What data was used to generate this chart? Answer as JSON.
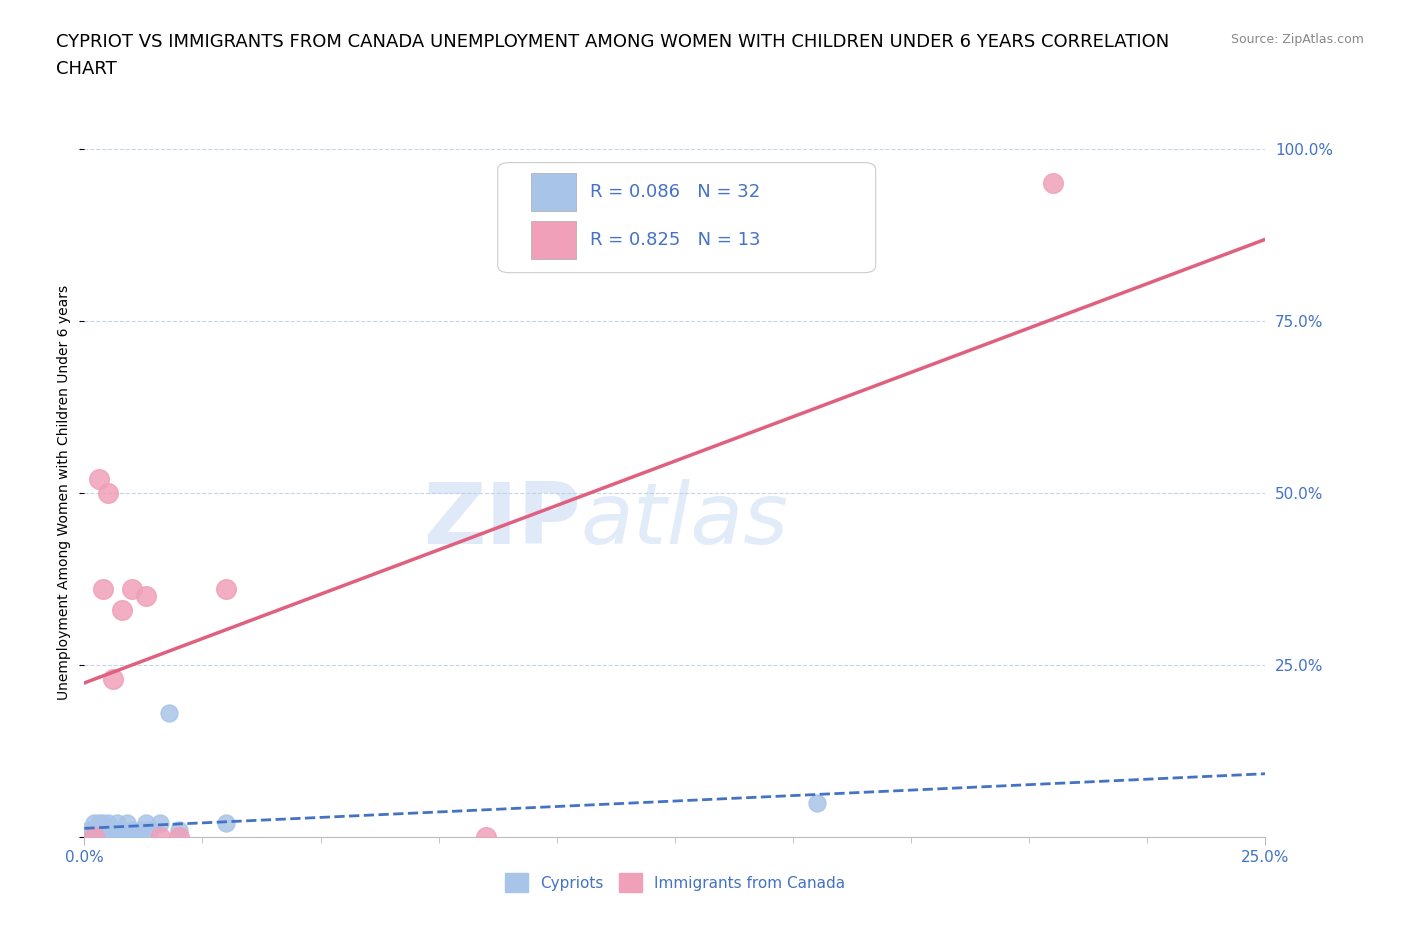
{
  "title_line1": "CYPRIOT VS IMMIGRANTS FROM CANADA UNEMPLOYMENT AMONG WOMEN WITH CHILDREN UNDER 6 YEARS CORRELATION",
  "title_line2": "CHART",
  "source": "Source: ZipAtlas.com",
  "ylabel": "Unemployment Among Women with Children Under 6 years",
  "watermark_zip": "ZIP",
  "watermark_atlas": "atlas",
  "xlim": [
    0.0,
    0.25
  ],
  "ylim": [
    0.0,
    1.0
  ],
  "xtick_labels_positions": [
    0.0,
    0.25
  ],
  "xtick_labels_text": [
    "0.0%",
    "25.0%"
  ],
  "xticks_minor": [
    0.025,
    0.05,
    0.075,
    0.1,
    0.125,
    0.15,
    0.175,
    0.2,
    0.225
  ],
  "yticks": [
    0.0,
    0.25,
    0.5,
    0.75,
    1.0
  ],
  "ytick_labels": [
    "",
    "25.0%",
    "50.0%",
    "75.0%",
    "100.0%"
  ],
  "cypriot_color": "#a8c4e8",
  "canada_color": "#f0a0b8",
  "cypriot_line_color": "#4472c4",
  "canada_line_color": "#e06080",
  "R_cypriot": 0.086,
  "N_cypriot": 32,
  "R_canada": 0.825,
  "N_canada": 13,
  "cypriot_x": [
    0.0,
    0.001,
    0.001,
    0.002,
    0.002,
    0.002,
    0.003,
    0.003,
    0.003,
    0.004,
    0.004,
    0.005,
    0.005,
    0.005,
    0.006,
    0.006,
    0.007,
    0.007,
    0.008,
    0.008,
    0.009,
    0.01,
    0.01,
    0.011,
    0.012,
    0.013,
    0.014,
    0.016,
    0.018,
    0.02,
    0.03,
    0.155
  ],
  "cypriot_y": [
    0.0,
    0.0,
    0.01,
    0.0,
    0.01,
    0.02,
    0.0,
    0.01,
    0.02,
    0.01,
    0.02,
    0.0,
    0.01,
    0.02,
    0.0,
    0.01,
    0.01,
    0.02,
    0.01,
    0.0,
    0.02,
    0.0,
    0.01,
    0.0,
    0.01,
    0.02,
    0.01,
    0.02,
    0.18,
    0.01,
    0.02,
    0.05
  ],
  "canada_x": [
    0.002,
    0.003,
    0.004,
    0.005,
    0.006,
    0.008,
    0.01,
    0.013,
    0.016,
    0.02,
    0.03,
    0.085,
    0.205
  ],
  "canada_y": [
    0.0,
    0.52,
    0.36,
    0.5,
    0.23,
    0.33,
    0.36,
    0.35,
    0.0,
    0.0,
    0.36,
    0.0,
    0.95
  ],
  "background_color": "#ffffff",
  "grid_color": "#c8d4e8",
  "legend_text_color": "#4472c4",
  "title_fontsize": 13,
  "axis_label_fontsize": 10,
  "tick_fontsize": 11,
  "legend_fontsize": 13,
  "source_fontsize": 9
}
